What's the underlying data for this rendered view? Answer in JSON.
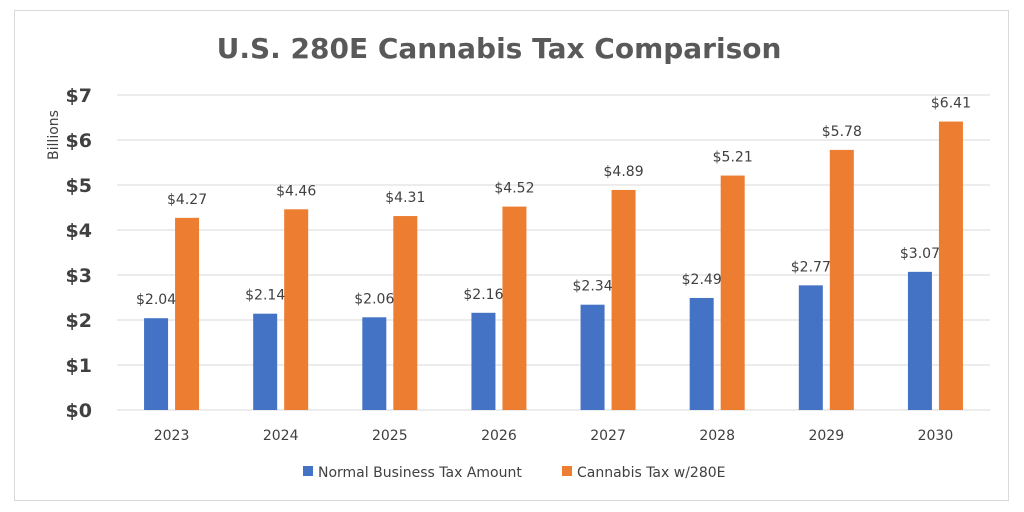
{
  "chart_data": {
    "type": "bar",
    "title": "U.S. 280E Cannabis Tax Comparison",
    "xlabel": "",
    "ylabel": "Billions",
    "ylim": [
      0,
      7
    ],
    "yticks": [
      "$0",
      "$1",
      "$2",
      "$3",
      "$4",
      "$5",
      "$6",
      "$7"
    ],
    "grid": true,
    "legend_position": "bottom",
    "categories": [
      "2023",
      "2024",
      "2025",
      "2026",
      "2027",
      "2028",
      "2029",
      "2030"
    ],
    "series": [
      {
        "name": "Normal Business Tax Amount",
        "color": "#4472C4",
        "values": [
          2.04,
          2.14,
          2.06,
          2.16,
          2.34,
          2.49,
          2.77,
          3.07
        ],
        "labels": [
          "$2.04",
          "$2.14",
          "$2.06",
          "$2.16",
          "$2.34",
          "$2.49",
          "$2.77",
          "$3.07"
        ]
      },
      {
        "name": "Cannabis Tax w/280E",
        "color": "#ED7D31",
        "values": [
          4.27,
          4.46,
          4.31,
          4.52,
          4.89,
          5.21,
          5.78,
          6.41
        ],
        "labels": [
          "$4.27",
          "$4.46",
          "$4.31",
          "$4.52",
          "$4.89",
          "$5.21",
          "$5.78",
          "$6.41"
        ]
      }
    ]
  }
}
